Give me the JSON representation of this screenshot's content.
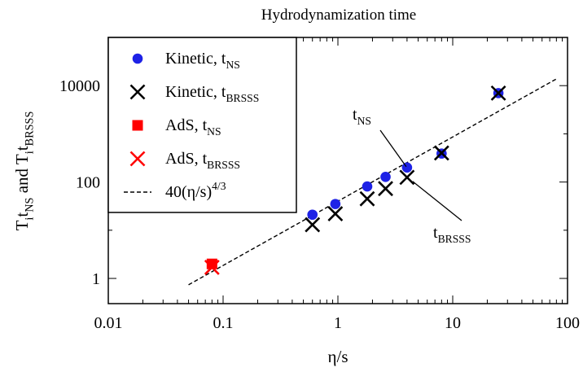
{
  "chart_data": {
    "type": "scatter",
    "title": "Hydrodynamization time",
    "xlabel": "η/s",
    "ylabel": {
      "parts": [
        {
          "text": "T"
        },
        {
          "text": "i",
          "sub": true
        },
        {
          "text": "t"
        },
        {
          "text": "NS",
          "sub": true
        },
        {
          "text": " and T"
        },
        {
          "text": "i",
          "sub": true
        },
        {
          "text": "t"
        },
        {
          "text": "BRSSS",
          "sub": true
        }
      ]
    },
    "xscale": "log",
    "yscale": "log",
    "xlim": [
      0.01,
      100
    ],
    "ylim": [
      0.3,
      100000
    ],
    "xticks": [
      {
        "value": 0.01,
        "label": "0.01"
      },
      {
        "value": 0.1,
        "label": "0.1"
      },
      {
        "value": 1,
        "label": "1"
      },
      {
        "value": 10,
        "label": "10"
      },
      {
        "value": 100,
        "label": "100"
      }
    ],
    "yticks": [
      {
        "value": 1,
        "label": "1"
      },
      {
        "value": 100,
        "label": "100"
      },
      {
        "value": 10000,
        "label": "10000"
      }
    ],
    "legend_position": "top-left",
    "series": [
      {
        "name": {
          "main": "Kinetic, t",
          "sub": "NS"
        },
        "marker": "circle",
        "color": "#1e22e6",
        "points": [
          [
            0.6,
            21
          ],
          [
            0.95,
            35
          ],
          [
            1.8,
            81
          ],
          [
            2.6,
            128
          ],
          [
            4.0,
            200
          ],
          [
            8.0,
            390
          ],
          [
            25,
            7000
          ]
        ]
      },
      {
        "name": {
          "main": "Kinetic, t",
          "sub": "BRSSS"
        },
        "marker": "x",
        "color": "#000000",
        "points": [
          [
            0.6,
            13
          ],
          [
            0.95,
            22
          ],
          [
            1.8,
            45
          ],
          [
            2.6,
            73
          ],
          [
            4.0,
            125
          ],
          [
            8.0,
            400
          ],
          [
            25,
            7000
          ]
        ]
      },
      {
        "name": {
          "main": "AdS, t",
          "sub": "NS"
        },
        "marker": "square",
        "color": "#ff0000",
        "points": [
          [
            0.08,
            2.0
          ]
        ]
      },
      {
        "name": {
          "main": "AdS, t",
          "sub": "BRSSS"
        },
        "marker": "x",
        "color": "#ff0000",
        "points": [
          [
            0.08,
            1.7
          ]
        ]
      },
      {
        "name": {
          "main": "40(η/s)",
          "sup": "4/3"
        },
        "marker": "dashed-line",
        "color": "#000000",
        "function": {
          "coefficient": 40,
          "exponent": 1.3333
        },
        "x_range": [
          0.05,
          80
        ]
      }
    ],
    "annotations": [
      {
        "label": {
          "main": "t",
          "sub": "NS"
        },
        "points_to": [
          4.0,
          200
        ]
      },
      {
        "label": {
          "main": "t",
          "sub": "BRSSS"
        },
        "points_to": [
          4.0,
          125
        ]
      }
    ]
  }
}
